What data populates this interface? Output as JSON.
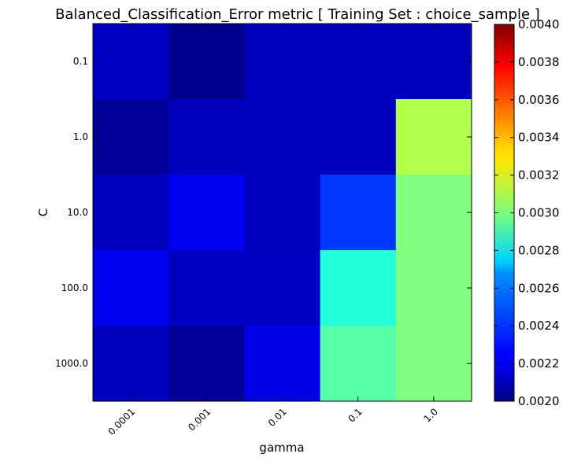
{
  "chart_data": {
    "type": "heatmap",
    "title": "Balanced_Classification_Error metric  [ Training Set : choice_sample ]",
    "xlabel": "gamma",
    "ylabel": "C",
    "x_categories": [
      "0.0001",
      "0.001",
      "0.01",
      "0.1",
      "1.0"
    ],
    "y_categories": [
      "0.1",
      "1.0",
      "10.0",
      "100.0",
      "1000.0"
    ],
    "values": [
      [
        0.00213,
        0.00203,
        0.00212,
        0.00212,
        0.00212
      ],
      [
        0.00205,
        0.00212,
        0.00212,
        0.00212,
        0.0031
      ],
      [
        0.00212,
        0.00222,
        0.00212,
        0.00236,
        0.003
      ],
      [
        0.00222,
        0.00213,
        0.00213,
        0.00282,
        0.003
      ],
      [
        0.00212,
        0.00205,
        0.0022,
        0.00292,
        0.003
      ]
    ],
    "colorbar": {
      "min": 0.002,
      "max": 0.004,
      "ticks": [
        "0.0020",
        "0.0022",
        "0.0024",
        "0.0026",
        "0.0028",
        "0.0030",
        "0.0032",
        "0.0034",
        "0.0036",
        "0.0038",
        "0.0040"
      ]
    },
    "colormap": "jet",
    "grid": false
  }
}
